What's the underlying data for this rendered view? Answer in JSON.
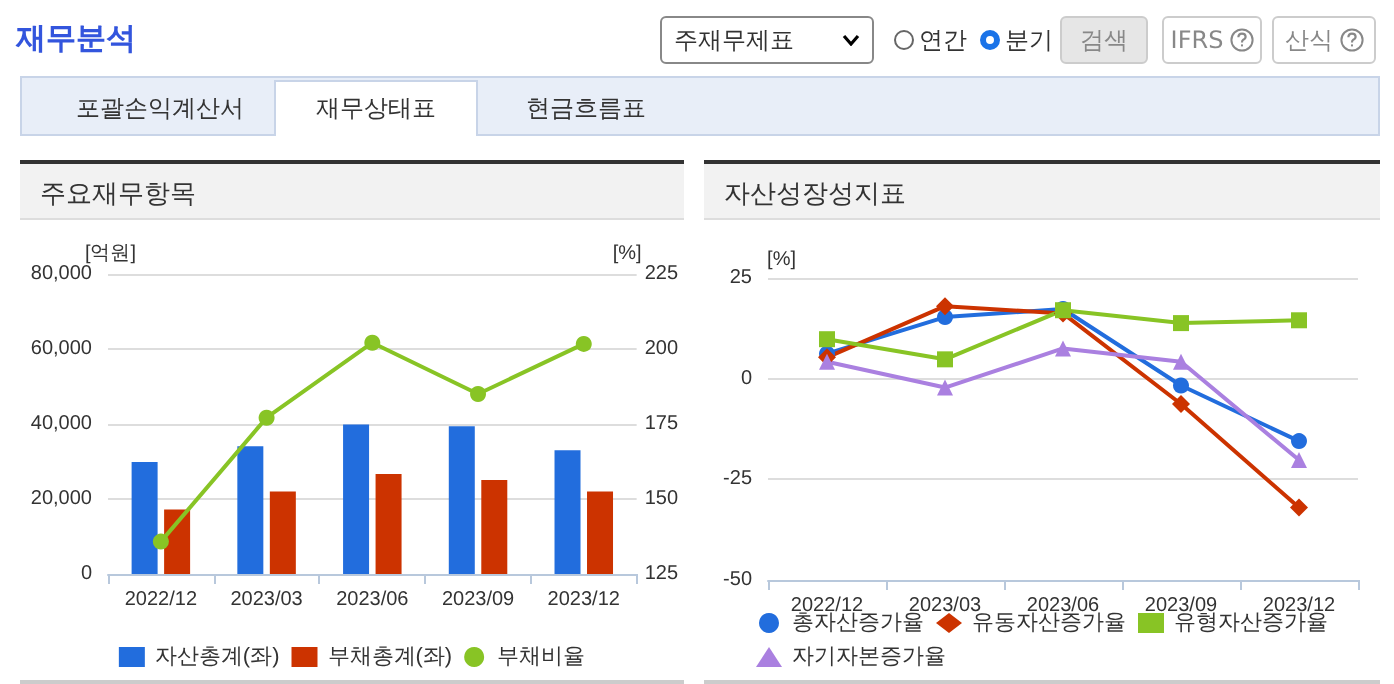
{
  "chart_data": [
    {
      "type": "other",
      "title": "재무분석",
      "annotations": [
        "주재무제표",
        "연간",
        "분기",
        "검색",
        "IFRS",
        "산식",
        "포괄손익계산서",
        "재무상태표",
        "현금흐름표"
      ]
    },
    {
      "type": "bar",
      "title": "주요재무항목",
      "ylabel": "[억원]",
      "y2label": "[%]",
      "categories": [
        "2022/12",
        "2023/03",
        "2023/06",
        "2023/09",
        "2023/12"
      ],
      "series": [
        {
          "name": "자산총계(좌)",
          "color": "#226ddd",
          "values": [
            29900,
            34100,
            39900,
            39400,
            33000
          ]
        },
        {
          "name": "부채총계(좌)",
          "color": "#cc3300",
          "values": [
            17200,
            22000,
            26700,
            25100,
            22000
          ]
        },
        {
          "name": "부채비율",
          "type": "line",
          "axis": "y2",
          "color": "#88c425",
          "values": [
            135.8,
            177.1,
            202.1,
            185.0,
            201.7
          ]
        }
      ],
      "ylim": [
        0,
        80000
      ],
      "yticks": [
        0,
        {
          "value": 20000,
          "label": "20,000"
        },
        {
          "value": 40000,
          "label": "40,000"
        },
        {
          "value": 60000,
          "label": "60,000"
        },
        {
          "value": 80000,
          "label": "80,000"
        }
      ],
      "y2lim": [
        125,
        225
      ],
      "y2ticks": [
        125,
        150,
        175,
        200,
        225
      ],
      "grid": "y",
      "legend": "bottom",
      "marker": "circle"
    },
    {
      "type": "line",
      "title": "자산성장성지표",
      "ylabel": "[%]",
      "categories": [
        "2022/12",
        "2023/03",
        "2023/06",
        "2023/09",
        "2023/12"
      ],
      "series": [
        {
          "name": "총자산증가율",
          "color": "#226ddd",
          "marker": "circle",
          "values": [
            6.2,
            15.3,
            17.3,
            -1.7,
            -15.5
          ]
        },
        {
          "name": "유동자산증가율",
          "color": "#cc3300",
          "marker": "diamond",
          "values": [
            5.3,
            18.0,
            16.2,
            -6.3,
            -32.0
          ]
        },
        {
          "name": "유형자산증가율",
          "color": "#88c425",
          "marker": "square",
          "values": [
            9.8,
            4.8,
            17.0,
            13.8,
            14.5
          ]
        },
        {
          "name": "자기자본증가율",
          "color": "#aa80e0",
          "marker": "triangle",
          "values": [
            4.2,
            -2.2,
            7.5,
            4.2,
            -20.2
          ]
        }
      ],
      "ylim": [
        -50,
        25
      ],
      "yticks": [
        -50,
        -25,
        0,
        25
      ],
      "grid": "y",
      "legend": "bottom"
    }
  ]
}
